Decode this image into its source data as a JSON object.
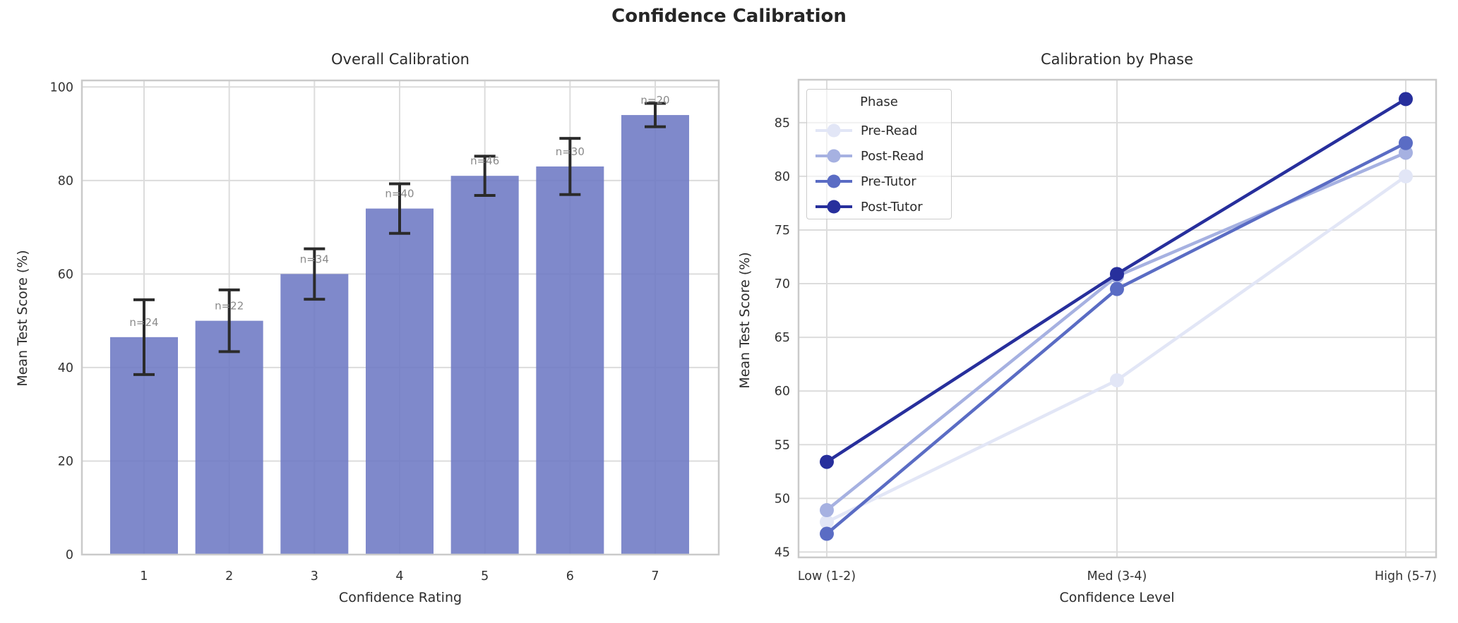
{
  "figure": {
    "title": "Confidence Calibration",
    "background": "#ffffff",
    "grid_color": "#dcdcdc",
    "spine_color": "#cacaca",
    "text_color": "#2b2b2b",
    "tick_color": "#333333"
  },
  "chart_data": [
    {
      "type": "bar",
      "title": "Overall Calibration",
      "xlabel": "Confidence Rating",
      "ylabel": "Mean Test Score (%)",
      "categories": [
        "1",
        "2",
        "3",
        "4",
        "5",
        "6",
        "7"
      ],
      "values": [
        46.5,
        50,
        60,
        74,
        81,
        83,
        94
      ],
      "error_bars": [
        8,
        6.6,
        5.4,
        5.3,
        4.2,
        6,
        2.5
      ],
      "n_labels": [
        "n=24",
        "n=22",
        "n=34",
        "n=40",
        "n=46",
        "n=30",
        "n=20"
      ],
      "yticks": [
        0,
        20,
        40,
        60,
        80,
        100
      ],
      "ylim": [
        0,
        101.4
      ],
      "grid": true,
      "bar_color": "#6d79c4",
      "bar_opacity": 0.88,
      "error_color": "#2b2b2b",
      "n_label_color": "#8a8a8a"
    },
    {
      "type": "line",
      "title": "Calibration by Phase",
      "xlabel": "Confidence Level",
      "ylabel": "Mean Test Score (%)",
      "categories": [
        "Low (1-2)",
        "Med (3-4)",
        "High (5-7)"
      ],
      "series": [
        {
          "name": "Pre-Read",
          "values": [
            47.8,
            61.0,
            80.0
          ],
          "color": "#e2e6f6"
        },
        {
          "name": "Post-Read",
          "values": [
            48.9,
            70.7,
            82.2
          ],
          "color": "#a6b1e1"
        },
        {
          "name": "Pre-Tutor",
          "values": [
            46.7,
            69.5,
            83.1
          ],
          "color": "#5a6cc4"
        },
        {
          "name": "Post-Tutor",
          "values": [
            53.4,
            70.9,
            87.2
          ],
          "color": "#272f9c"
        }
      ],
      "yticks": [
        45,
        50,
        55,
        60,
        65,
        70,
        75,
        80,
        85
      ],
      "ylim": [
        44.5,
        89
      ],
      "grid": true,
      "legend": {
        "title": "Phase",
        "position": "upper-left"
      }
    }
  ]
}
